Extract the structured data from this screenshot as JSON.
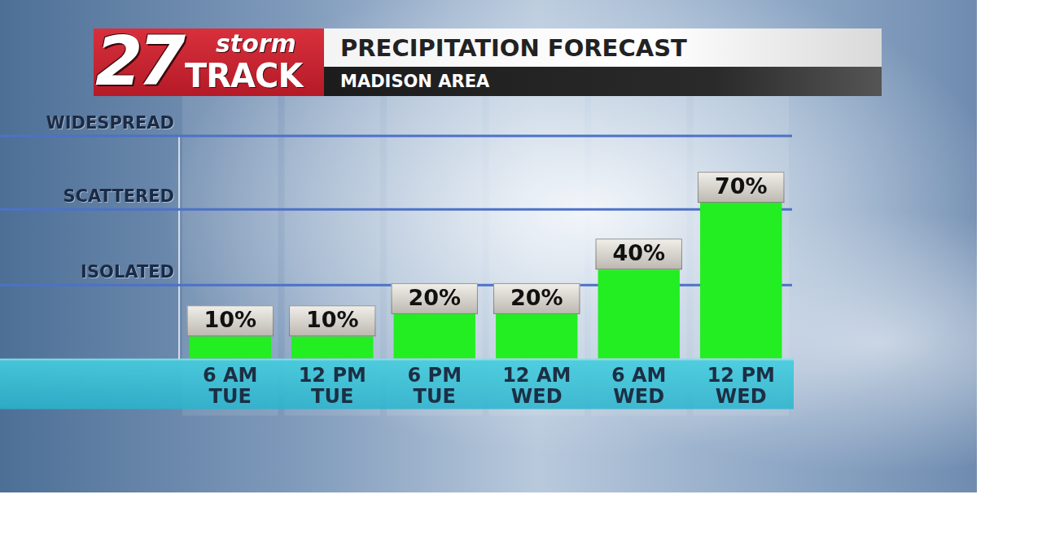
{
  "header": {
    "logo": {
      "number": "27",
      "top": "storm",
      "bottom": "TRACK"
    }
  },
  "chart_data": {
    "type": "bar",
    "title": "PRECIPITATION FORECAST",
    "subtitle": "MADISON AREA",
    "categories": [
      "6 AM TUE",
      "12 PM TUE",
      "6 PM TUE",
      "12 AM WED",
      "6 AM WED",
      "12 PM WED"
    ],
    "values": [
      10,
      10,
      20,
      20,
      40,
      70
    ],
    "value_labels": [
      "10%",
      "10%",
      "20%",
      "20%",
      "40%",
      "70%"
    ],
    "data_labels": true,
    "color": "#22ee22",
    "ylim": [
      0,
      100
    ],
    "yticks": [
      {
        "value": 33,
        "label": "ISOLATED"
      },
      {
        "value": 67,
        "label": "SCATTERED"
      },
      {
        "value": 100,
        "label": "WIDESPREAD"
      }
    ],
    "grid": true
  }
}
